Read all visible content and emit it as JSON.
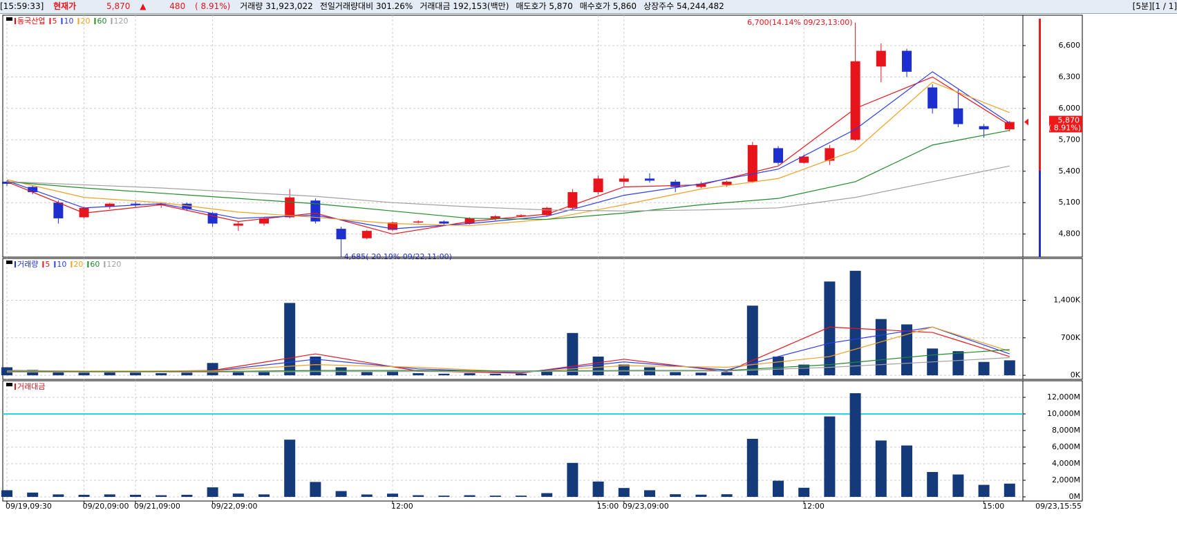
{
  "header": {
    "time": "[15:59:33]",
    "price_label": "현재가",
    "price": "5,870",
    "arrow": "▲",
    "change": "480",
    "change_pct": "( 8.91%)",
    "items": [
      "거래량 31,923,022",
      "전일거래량대비 301.26%",
      "거래대금 192,153(백만)",
      "매도호가 5,870",
      "매수호가 5,860",
      "상장주수 54,244,482"
    ],
    "right": "[5분][1 / 1]"
  },
  "chart_data": [
    {
      "type": "candlestick",
      "title": "동국산업",
      "title_color": "#ff0000",
      "up_color": "#e8141b",
      "down_color": "#1e2fd0",
      "open": [
        5300,
        5250,
        5100,
        4960,
        5060,
        5090,
        5080,
        5090,
        5000,
        4880,
        4900,
        4960,
        5120,
        4850,
        4760,
        4840,
        4910,
        4920,
        4900,
        4950,
        4970,
        4980,
        5050,
        5200,
        5300,
        5330,
        5300,
        5250,
        5270,
        5300,
        5620,
        5480,
        5500,
        5700,
        6400,
        6550,
        6200,
        6000,
        5830,
        5800
      ],
      "high": [
        5310,
        5260,
        5120,
        5060,
        5100,
        5110,
        5100,
        5100,
        5010,
        4920,
        4960,
        5230,
        5140,
        4870,
        4840,
        4920,
        4930,
        4930,
        4960,
        4980,
        4990,
        5060,
        5230,
        5360,
        5360,
        5380,
        5320,
        5300,
        5310,
        5680,
        5640,
        5560,
        5650,
        6700,
        6620,
        6570,
        6230,
        6180,
        5850,
        5880
      ],
      "low": [
        5260,
        5180,
        4900,
        4950,
        5040,
        5060,
        5050,
        5020,
        4870,
        4830,
        4880,
        4950,
        4900,
        4685,
        4750,
        4830,
        4900,
        4880,
        4890,
        4930,
        4960,
        4970,
        5040,
        5180,
        5260,
        5290,
        5200,
        5240,
        5250,
        5290,
        5460,
        5470,
        5460,
        5690,
        6250,
        6300,
        5950,
        5820,
        5720,
        5780
      ],
      "close": [
        5280,
        5200,
        4950,
        5050,
        5090,
        5080,
        5090,
        5040,
        4900,
        4900,
        4950,
        5150,
        4920,
        4750,
        4830,
        4910,
        4920,
        4900,
        4950,
        4970,
        4980,
        5050,
        5200,
        5330,
        5330,
        5310,
        5250,
        5280,
        5300,
        5650,
        5480,
        5540,
        5620,
        6450,
        6550,
        6350,
        6000,
        5850,
        5800,
        5870
      ],
      "series": [
        {
          "name": "5",
          "color": "#e8141b",
          "x": [
            0,
            3,
            6,
            9,
            12,
            15,
            18,
            21,
            24,
            27,
            30,
            33,
            36,
            39
          ],
          "values": [
            5300,
            5000,
            5080,
            4920,
            5000,
            4800,
            4920,
            4990,
            5250,
            5270,
            5450,
            6000,
            6300,
            5840
          ]
        },
        {
          "name": "10",
          "color": "#2a3cf0",
          "x": [
            0,
            3,
            6,
            9,
            12,
            15,
            18,
            21,
            24,
            27,
            30,
            33,
            36,
            39
          ],
          "values": [
            5310,
            5050,
            5090,
            4950,
            4980,
            4850,
            4900,
            4970,
            5170,
            5280,
            5420,
            5800,
            6350,
            5860
          ]
        },
        {
          "name": "20",
          "color": "#f0a020",
          "x": [
            0,
            3,
            6,
            9,
            12,
            15,
            18,
            21,
            24,
            27,
            30,
            33,
            36,
            39
          ],
          "values": [
            5320,
            5150,
            5100,
            5010,
            4960,
            4900,
            4880,
            4940,
            5080,
            5230,
            5330,
            5600,
            6250,
            5960
          ]
        },
        {
          "name": "60",
          "color": "#1f8a2a",
          "x": [
            0,
            3,
            6,
            9,
            12,
            15,
            18,
            21,
            24,
            27,
            30,
            33,
            36,
            39
          ],
          "values": [
            5300,
            5240,
            5190,
            5140,
            5090,
            5020,
            4950,
            4940,
            5000,
            5080,
            5140,
            5300,
            5650,
            5790
          ]
        },
        {
          "name": "120",
          "color": "#a0a0a0",
          "x": [
            0,
            3,
            6,
            9,
            12,
            15,
            18,
            21,
            24,
            27,
            30,
            33,
            36,
            39
          ],
          "values": [
            5300,
            5270,
            5240,
            5200,
            5160,
            5100,
            5060,
            5030,
            5020,
            5030,
            5050,
            5150,
            5300,
            5450
          ]
        }
      ],
      "ylim": [
        4580,
        6890
      ],
      "yticks": [
        {
          "value": 4800,
          "label": "4,800"
        },
        {
          "value": 5100,
          "label": "5,100"
        },
        {
          "value": 5400,
          "label": "5,400"
        },
        {
          "value": 5700,
          "label": "5,700"
        },
        {
          "value": 6000,
          "label": "6,000"
        },
        {
          "value": 6300,
          "label": "6,300"
        },
        {
          "value": 6600,
          "label": "6,600"
        }
      ],
      "annotations": [
        {
          "text": "6,700(14.14% 09/23,13:00)",
          "x": 33,
          "y": 6700,
          "color": "#e8141b",
          "side": "top"
        },
        {
          "text": "4,685(-20.19% 09/22,11:00)",
          "x": 13,
          "y": 4685,
          "color": "#1e2fd0",
          "side": "bottom"
        }
      ],
      "last_label": "5,870",
      "last_change_label": "( 8.91%)",
      "grid": true
    },
    {
      "type": "bar",
      "title": "거래량",
      "title_color": "#1e2fd0",
      "color": "#153a7a",
      "values": [
        150000,
        100000,
        60000,
        50000,
        60000,
        50000,
        40000,
        50000,
        230000,
        80000,
        60000,
        1350000,
        350000,
        150000,
        60000,
        80000,
        40000,
        30000,
        40000,
        30000,
        30000,
        90000,
        790000,
        350000,
        200000,
        150000,
        60000,
        50000,
        60000,
        1300000,
        350000,
        200000,
        1750000,
        1950000,
        1050000,
        950000,
        500000,
        450000,
        250000,
        280000
      ],
      "series": [
        {
          "name": "5",
          "color": "#e8141b",
          "x": [
            0,
            4,
            8,
            12,
            16,
            20,
            24,
            28,
            32,
            36,
            39
          ],
          "values": [
            80000,
            70000,
            90000,
            400000,
            80000,
            40000,
            300000,
            70000,
            900000,
            800000,
            350000
          ]
        },
        {
          "name": "10",
          "color": "#2a3cf0",
          "x": [
            0,
            4,
            8,
            12,
            16,
            20,
            24,
            28,
            32,
            36,
            39
          ],
          "values": [
            90000,
            75000,
            80000,
            300000,
            120000,
            50000,
            250000,
            100000,
            600000,
            900000,
            400000
          ]
        },
        {
          "name": "20",
          "color": "#f0a020",
          "x": [
            0,
            4,
            8,
            12,
            16,
            20,
            24,
            28,
            32,
            36,
            39
          ],
          "values": [
            80000,
            80000,
            80000,
            200000,
            150000,
            60000,
            180000,
            150000,
            350000,
            900000,
            450000
          ]
        },
        {
          "name": "60",
          "color": "#1f8a2a",
          "x": [
            0,
            4,
            8,
            12,
            16,
            20,
            24,
            28,
            32,
            36,
            39
          ],
          "values": [
            70000,
            70000,
            70000,
            90000,
            90000,
            80000,
            90000,
            90000,
            200000,
            380000,
            480000
          ]
        },
        {
          "name": "120",
          "color": "#a0a0a0",
          "x": [
            0,
            4,
            8,
            12,
            16,
            20,
            24,
            28,
            32,
            36,
            39
          ],
          "values": [
            60000,
            60000,
            60000,
            70000,
            70000,
            70000,
            80000,
            80000,
            150000,
            250000,
            330000
          ]
        }
      ],
      "ylim": [
        -76000,
        2180000
      ],
      "yticks": [
        {
          "value": 0,
          "label": "0K"
        },
        {
          "value": 700000,
          "label": "700K"
        },
        {
          "value": 1400000,
          "label": "1,400K"
        }
      ],
      "grid": true
    },
    {
      "type": "bar",
      "title": "거래대금",
      "title_color": "#e8141b",
      "color": "#153a7a",
      "values": [
        800,
        520,
        300,
        250,
        300,
        250,
        200,
        250,
        1150,
        400,
        300,
        6900,
        1800,
        700,
        290,
        390,
        200,
        150,
        200,
        150,
        150,
        450,
        4100,
        1850,
        1070,
        800,
        320,
        270,
        320,
        7000,
        1950,
        1100,
        9700,
        12500,
        6800,
        6200,
        3000,
        2700,
        1450,
        1600
      ],
      "categories": [
        "09/19,09:30",
        null,
        null,
        "09/20,09:00",
        null,
        "09/21,09:00",
        null,
        null,
        "09/22,09:00",
        null,
        null,
        null,
        null,
        null,
        null,
        "12:00",
        null,
        null,
        null,
        null,
        null,
        null,
        null,
        "15:00",
        "09/23,09:00",
        null,
        null,
        null,
        null,
        null,
        null,
        "12:00",
        null,
        null,
        null,
        null,
        null,
        null,
        "15:00",
        null
      ],
      "x_end_label": "09/23,15:55",
      "ylim": [
        -500,
        14000
      ],
      "yticks": [
        {
          "value": 0,
          "label": "0M"
        },
        {
          "value": 2000,
          "label": "2,000M"
        },
        {
          "value": 4000,
          "label": "4,000M"
        },
        {
          "value": 6000,
          "label": "6,000M"
        },
        {
          "value": 8000,
          "label": "8,000M"
        },
        {
          "value": 10000,
          "label": "10,000M"
        },
        {
          "value": 12000,
          "label": "12,000M"
        }
      ],
      "hline": {
        "value": 10000,
        "color": "#22d8e0"
      },
      "grid": true
    }
  ]
}
